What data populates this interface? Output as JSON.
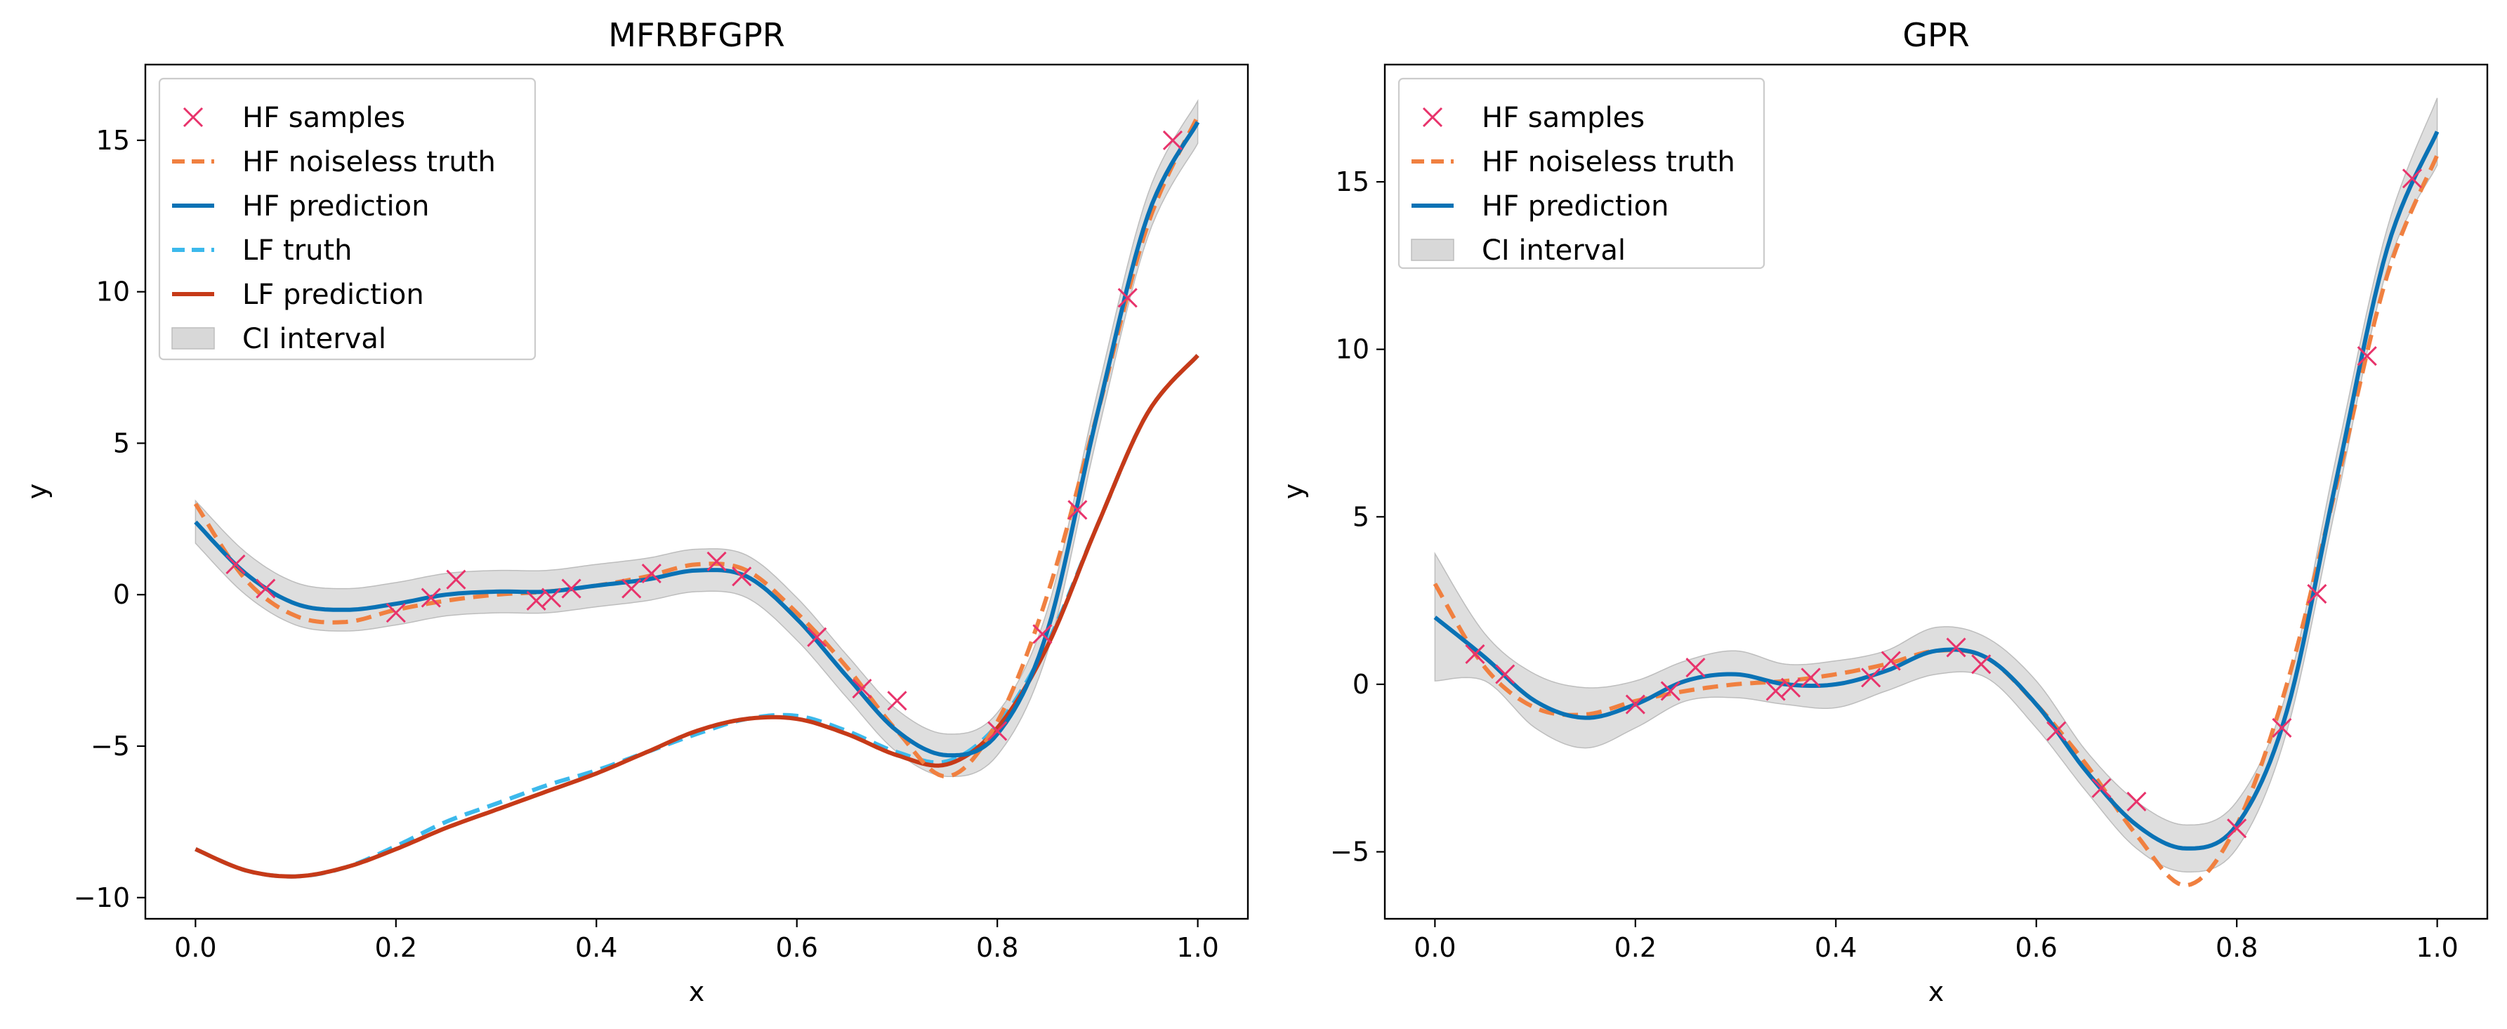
{
  "colors": {
    "hf_samples": "#e8336b",
    "hf_truth": "#f08040",
    "hf_prediction": "#0a72b5",
    "lf_truth": "#3cb9ec",
    "lf_prediction": "#c63a18",
    "ci": "#d8d8d8"
  },
  "chart_data": [
    {
      "type": "line",
      "title": "MFRBFGPR",
      "xlabel": "x",
      "ylabel": "y",
      "xlim": [
        -0.05,
        1.05
      ],
      "ylim": [
        -10.7,
        17.5
      ],
      "xticks": [
        "0.0",
        "0.2",
        "0.4",
        "0.6",
        "0.8",
        "1.0"
      ],
      "yticks": [
        "−10",
        "−5",
        "0",
        "5",
        "10",
        "15"
      ],
      "ytick_values": [
        -10,
        -5,
        0,
        5,
        10,
        15
      ],
      "legend_position": "upper-left",
      "legend": [
        "HF samples",
        "HF noiseless truth",
        "HF prediction",
        "LF truth",
        "LF prediction",
        "CI interval"
      ],
      "hf_samples": {
        "x": [
          0.04,
          0.07,
          0.2,
          0.235,
          0.26,
          0.34,
          0.355,
          0.375,
          0.435,
          0.455,
          0.52,
          0.545,
          0.62,
          0.665,
          0.7,
          0.8,
          0.845,
          0.88,
          0.93,
          0.975
        ],
        "y": [
          1.0,
          0.2,
          -0.6,
          -0.1,
          0.5,
          -0.2,
          -0.1,
          0.2,
          0.2,
          0.7,
          1.1,
          0.6,
          -1.4,
          -3.1,
          -3.5,
          -4.5,
          -1.3,
          2.8,
          9.8,
          15.0
        ]
      },
      "hf_truth": {
        "x": [
          0.0,
          0.05,
          0.1,
          0.15,
          0.2,
          0.25,
          0.3,
          0.35,
          0.4,
          0.45,
          0.5,
          0.55,
          0.6,
          0.65,
          0.7,
          0.75,
          0.8,
          0.85,
          0.9,
          0.95,
          1.0
        ],
        "y": [
          3.0,
          0.5,
          -0.7,
          -0.9,
          -0.5,
          -0.2,
          0.0,
          0.1,
          0.3,
          0.6,
          1.0,
          0.8,
          -0.6,
          -2.4,
          -4.5,
          -6.0,
          -4.2,
          0.0,
          6.0,
          12.2,
          15.8
        ]
      },
      "hf_prediction": {
        "x": [
          0.0,
          0.05,
          0.1,
          0.15,
          0.2,
          0.25,
          0.3,
          0.35,
          0.4,
          0.45,
          0.5,
          0.55,
          0.6,
          0.65,
          0.7,
          0.75,
          0.8,
          0.85,
          0.9,
          0.95,
          1.0
        ],
        "y": [
          2.4,
          0.7,
          -0.3,
          -0.5,
          -0.3,
          0.0,
          0.1,
          0.1,
          0.3,
          0.5,
          0.8,
          0.6,
          -0.8,
          -2.7,
          -4.5,
          -5.3,
          -4.6,
          -1.2,
          6.0,
          12.5,
          15.6
        ]
      },
      "ci_halfwidth": 0.7,
      "lf_truth": {
        "x": [
          0.0,
          0.05,
          0.1,
          0.15,
          0.2,
          0.25,
          0.3,
          0.35,
          0.4,
          0.45,
          0.5,
          0.55,
          0.6,
          0.65,
          0.7,
          0.75,
          0.8,
          0.85,
          0.9,
          0.95,
          1.0
        ],
        "y": [
          -8.4,
          -9.1,
          -9.3,
          -9.0,
          -8.3,
          -7.5,
          -6.9,
          -6.3,
          -5.8,
          -5.2,
          -4.6,
          -4.1,
          -4.0,
          -4.5,
          -5.2,
          -5.5,
          -4.3,
          -1.6,
          2.3,
          6.0,
          7.9
        ]
      },
      "lf_prediction": {
        "x": [
          0.0,
          0.05,
          0.1,
          0.15,
          0.2,
          0.25,
          0.3,
          0.35,
          0.4,
          0.45,
          0.5,
          0.55,
          0.6,
          0.65,
          0.7,
          0.75,
          0.8,
          0.85,
          0.9,
          0.95,
          1.0
        ],
        "y": [
          -8.4,
          -9.1,
          -9.3,
          -9.0,
          -8.4,
          -7.7,
          -7.1,
          -6.5,
          -5.9,
          -5.2,
          -4.5,
          -4.1,
          -4.1,
          -4.6,
          -5.3,
          -5.6,
          -4.4,
          -1.7,
          2.3,
          6.0,
          7.9
        ]
      }
    },
    {
      "type": "line",
      "title": "GPR",
      "xlabel": "x",
      "ylabel": "y",
      "xlim": [
        -0.05,
        1.05
      ],
      "ylim": [
        -7.0,
        18.5
      ],
      "xticks": [
        "0.0",
        "0.2",
        "0.4",
        "0.6",
        "0.8",
        "1.0"
      ],
      "yticks": [
        "−5",
        "0",
        "5",
        "10",
        "15"
      ],
      "ytick_values": [
        -5,
        0,
        5,
        10,
        15
      ],
      "legend_position": "upper-left",
      "legend": [
        "HF samples",
        "HF noiseless truth",
        "HF prediction",
        "CI interval"
      ],
      "hf_samples": {
        "x": [
          0.04,
          0.07,
          0.2,
          0.235,
          0.26,
          0.34,
          0.355,
          0.375,
          0.435,
          0.455,
          0.52,
          0.545,
          0.62,
          0.665,
          0.7,
          0.8,
          0.845,
          0.88,
          0.93,
          0.975
        ],
        "y": [
          0.9,
          0.3,
          -0.6,
          -0.2,
          0.5,
          -0.2,
          -0.1,
          0.2,
          0.2,
          0.7,
          1.1,
          0.6,
          -1.4,
          -3.1,
          -3.5,
          -4.3,
          -1.3,
          2.7,
          9.8,
          15.1
        ]
      },
      "hf_truth": {
        "x": [
          0.0,
          0.05,
          0.1,
          0.15,
          0.2,
          0.25,
          0.3,
          0.35,
          0.4,
          0.45,
          0.5,
          0.55,
          0.6,
          0.65,
          0.7,
          0.75,
          0.8,
          0.85,
          0.9,
          0.95,
          1.0
        ],
        "y": [
          3.0,
          0.5,
          -0.7,
          -0.9,
          -0.5,
          -0.2,
          0.0,
          0.1,
          0.3,
          0.6,
          1.0,
          0.8,
          -0.6,
          -2.4,
          -4.5,
          -6.0,
          -4.2,
          0.0,
          6.0,
          12.2,
          15.8
        ]
      },
      "hf_prediction": {
        "x": [
          0.0,
          0.05,
          0.1,
          0.15,
          0.2,
          0.25,
          0.3,
          0.35,
          0.4,
          0.45,
          0.5,
          0.55,
          0.6,
          0.65,
          0.7,
          0.75,
          0.8,
          0.85,
          0.9,
          0.95,
          1.0
        ],
        "y": [
          2.0,
          0.8,
          -0.5,
          -1.0,
          -0.6,
          0.1,
          0.3,
          0.0,
          0.0,
          0.4,
          1.0,
          0.8,
          -0.6,
          -2.6,
          -4.2,
          -4.9,
          -4.2,
          -0.8,
          6.2,
          13.0,
          16.5
        ]
      },
      "ci_halfwidth_x": [
        0.0,
        0.05,
        0.1,
        0.15,
        0.2,
        0.25,
        0.3,
        0.35,
        0.4,
        0.45,
        0.5,
        0.55,
        0.6,
        0.65,
        0.7,
        0.75,
        0.8,
        0.85,
        0.9,
        0.95,
        1.0
      ],
      "ci_halfwidth": [
        1.9,
        0.7,
        0.8,
        0.9,
        0.7,
        0.6,
        0.7,
        0.6,
        0.7,
        0.6,
        0.7,
        0.6,
        0.7,
        0.6,
        0.7,
        0.7,
        0.7,
        0.6,
        0.7,
        0.6,
        1.0
      ]
    }
  ]
}
